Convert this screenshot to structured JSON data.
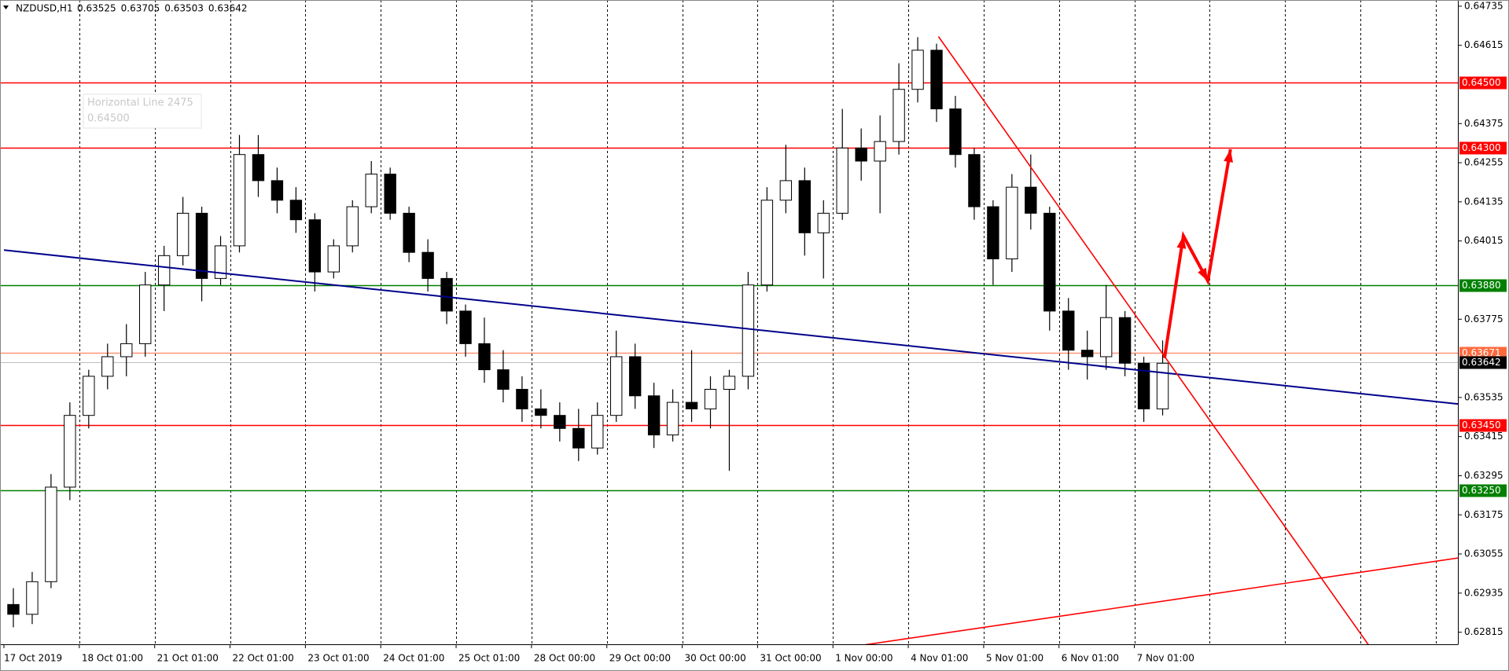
{
  "chart_data": {
    "type": "candlestick",
    "header": {
      "symbol": "NZDUSD,H1",
      "values": [
        0.63525,
        0.63705,
        0.63503,
        0.63642
      ]
    },
    "tooltip": [
      "Horizontal Line 2475",
      "0.64500"
    ],
    "categories": [
      "17 Oct 2019",
      null,
      null,
      null,
      "18 Oct 01:00",
      null,
      null,
      null,
      "21 Oct 01:00",
      null,
      null,
      null,
      "22 Oct 01:00",
      null,
      null,
      null,
      "23 Oct 01:00",
      null,
      null,
      null,
      "24 Oct 01:00",
      null,
      null,
      null,
      "25 Oct 01:00",
      null,
      null,
      null,
      "28 Oct 00:00",
      null,
      null,
      null,
      "29 Oct 00:00",
      null,
      null,
      null,
      "30 Oct 00:00",
      null,
      null,
      null,
      "31 Oct 00:00",
      null,
      null,
      null,
      "1 Nov 00:00",
      null,
      null,
      null,
      "4 Nov 01:00",
      null,
      null,
      null,
      "5 Nov 01:00",
      null,
      null,
      null,
      "6 Nov 01:00",
      null,
      null,
      null,
      "7 Nov 01:00",
      null
    ],
    "ohlc": [
      [
        0.629,
        0.6295,
        0.6283,
        0.6287
      ],
      [
        0.6287,
        0.63,
        0.6284,
        0.6297
      ],
      [
        0.6297,
        0.633,
        0.6295,
        0.6326
      ],
      [
        0.6326,
        0.6352,
        0.6322,
        0.6348
      ],
      [
        0.6348,
        0.6362,
        0.6344,
        0.636
      ],
      [
        0.636,
        0.637,
        0.6356,
        0.6366
      ],
      [
        0.6366,
        0.6376,
        0.636,
        0.637
      ],
      [
        0.637,
        0.6392,
        0.6366,
        0.6388
      ],
      [
        0.6388,
        0.64,
        0.638,
        0.6397
      ],
      [
        0.6397,
        0.6415,
        0.6394,
        0.641
      ],
      [
        0.641,
        0.6412,
        0.6383,
        0.639
      ],
      [
        0.639,
        0.6403,
        0.6388,
        0.64
      ],
      [
        0.64,
        0.6434,
        0.6398,
        0.6428
      ],
      [
        0.6428,
        0.6434,
        0.6415,
        0.642
      ],
      [
        0.642,
        0.6424,
        0.641,
        0.6414
      ],
      [
        0.6414,
        0.6418,
        0.6404,
        0.6408
      ],
      [
        0.6408,
        0.641,
        0.6386,
        0.6392
      ],
      [
        0.6392,
        0.6402,
        0.639,
        0.64
      ],
      [
        0.64,
        0.6414,
        0.6398,
        0.6412
      ],
      [
        0.6412,
        0.6426,
        0.641,
        0.6422
      ],
      [
        0.6422,
        0.6424,
        0.6408,
        0.641
      ],
      [
        0.641,
        0.6412,
        0.6395,
        0.6398
      ],
      [
        0.6398,
        0.6402,
        0.6386,
        0.639
      ],
      [
        0.639,
        0.6392,
        0.6376,
        0.638
      ],
      [
        0.638,
        0.6382,
        0.6366,
        0.637
      ],
      [
        0.637,
        0.6378,
        0.6358,
        0.6362
      ],
      [
        0.6362,
        0.6368,
        0.6352,
        0.6356
      ],
      [
        0.6356,
        0.636,
        0.6346,
        0.635
      ],
      [
        0.635,
        0.6356,
        0.6344,
        0.6348
      ],
      [
        0.6348,
        0.6352,
        0.634,
        0.6344
      ],
      [
        0.6344,
        0.635,
        0.6334,
        0.6338
      ],
      [
        0.6338,
        0.6352,
        0.6336,
        0.6348
      ],
      [
        0.6348,
        0.6374,
        0.6346,
        0.6366
      ],
      [
        0.6366,
        0.637,
        0.635,
        0.6354
      ],
      [
        0.6354,
        0.6358,
        0.6338,
        0.6342
      ],
      [
        0.6342,
        0.6356,
        0.634,
        0.6352
      ],
      [
        0.6352,
        0.6368,
        0.6346,
        0.635
      ],
      [
        0.635,
        0.636,
        0.6344,
        0.6356
      ],
      [
        0.6356,
        0.6362,
        0.6331,
        0.636
      ],
      [
        0.636,
        0.6392,
        0.6356,
        0.6388
      ],
      [
        0.6388,
        0.6418,
        0.6386,
        0.6414
      ],
      [
        0.6414,
        0.6431,
        0.641,
        0.642
      ],
      [
        0.642,
        0.6424,
        0.6397,
        0.6404
      ],
      [
        0.6404,
        0.6414,
        0.639,
        0.641
      ],
      [
        0.641,
        0.6442,
        0.6408,
        0.643
      ],
      [
        0.643,
        0.6436,
        0.642,
        0.6426
      ],
      [
        0.6426,
        0.644,
        0.641,
        0.6432
      ],
      [
        0.6432,
        0.6456,
        0.6428,
        0.6448
      ],
      [
        0.6448,
        0.6464,
        0.6444,
        0.646
      ],
      [
        0.646,
        0.6462,
        0.6438,
        0.6442
      ],
      [
        0.6442,
        0.6446,
        0.6424,
        0.6428
      ],
      [
        0.6428,
        0.643,
        0.6408,
        0.6412
      ],
      [
        0.6412,
        0.6414,
        0.6388,
        0.6396
      ],
      [
        0.6396,
        0.6422,
        0.6392,
        0.6418
      ],
      [
        0.6418,
        0.6428,
        0.6405,
        0.641
      ],
      [
        0.641,
        0.6412,
        0.6374,
        0.638
      ],
      [
        0.638,
        0.6384,
        0.6362,
        0.6368
      ],
      [
        0.6368,
        0.6374,
        0.6359,
        0.6366
      ],
      [
        0.6366,
        0.6388,
        0.6362,
        0.6378
      ],
      [
        0.6378,
        0.638,
        0.636,
        0.6364
      ],
      [
        0.6364,
        0.6366,
        0.6346,
        0.635
      ],
      [
        0.635,
        0.6371,
        0.6348,
        0.6364
      ]
    ],
    "ylim": [
      0.62778,
      0.64754
    ],
    "yticks": [
      0.64735,
      0.64615,
      0.64375,
      0.64255,
      0.64135,
      0.64015,
      0.63775,
      0.63535,
      0.63415,
      0.63295,
      0.63175,
      0.63055,
      0.62935,
      0.62815
    ],
    "levels": [
      {
        "value": 0.645,
        "label": "0.64500",
        "color": "#ff0000"
      },
      {
        "value": 0.643,
        "label": "0.64300",
        "color": "#ff0000"
      },
      {
        "value": 0.6388,
        "label": "0.63880",
        "color": "#008000"
      },
      {
        "value": 0.63671,
        "label": "0.63671",
        "color": "#ff6a3d"
      },
      {
        "value": 0.63642,
        "label": "0.63642",
        "color": "#000000"
      },
      {
        "value": 0.6345,
        "label": "0.63450",
        "color": "#ff0000"
      },
      {
        "value": 0.6325,
        "label": "0.63250",
        "color": "#008000"
      }
    ],
    "trendlines": [
      {
        "color": "#00008b",
        "points": [
          [
            -0.5,
            0.63987
          ],
          [
            76.7,
            0.63515
          ]
        ]
      },
      {
        "color": "#ff0000",
        "points": [
          [
            49.1,
            0.64642
          ],
          [
            72.1,
            0.62762
          ]
        ]
      },
      {
        "color": "#ff0000",
        "points": [
          [
            43.5,
            0.62762
          ],
          [
            76.7,
            0.63043
          ]
        ]
      }
    ],
    "arrow": {
      "color": "#ff0000",
      "points": [
        [
          61.1,
          0.63656
        ],
        [
          62.1,
          0.64031
        ],
        [
          63.4,
          0.63892
        ],
        [
          64.6,
          0.64296
        ]
      ]
    }
  }
}
